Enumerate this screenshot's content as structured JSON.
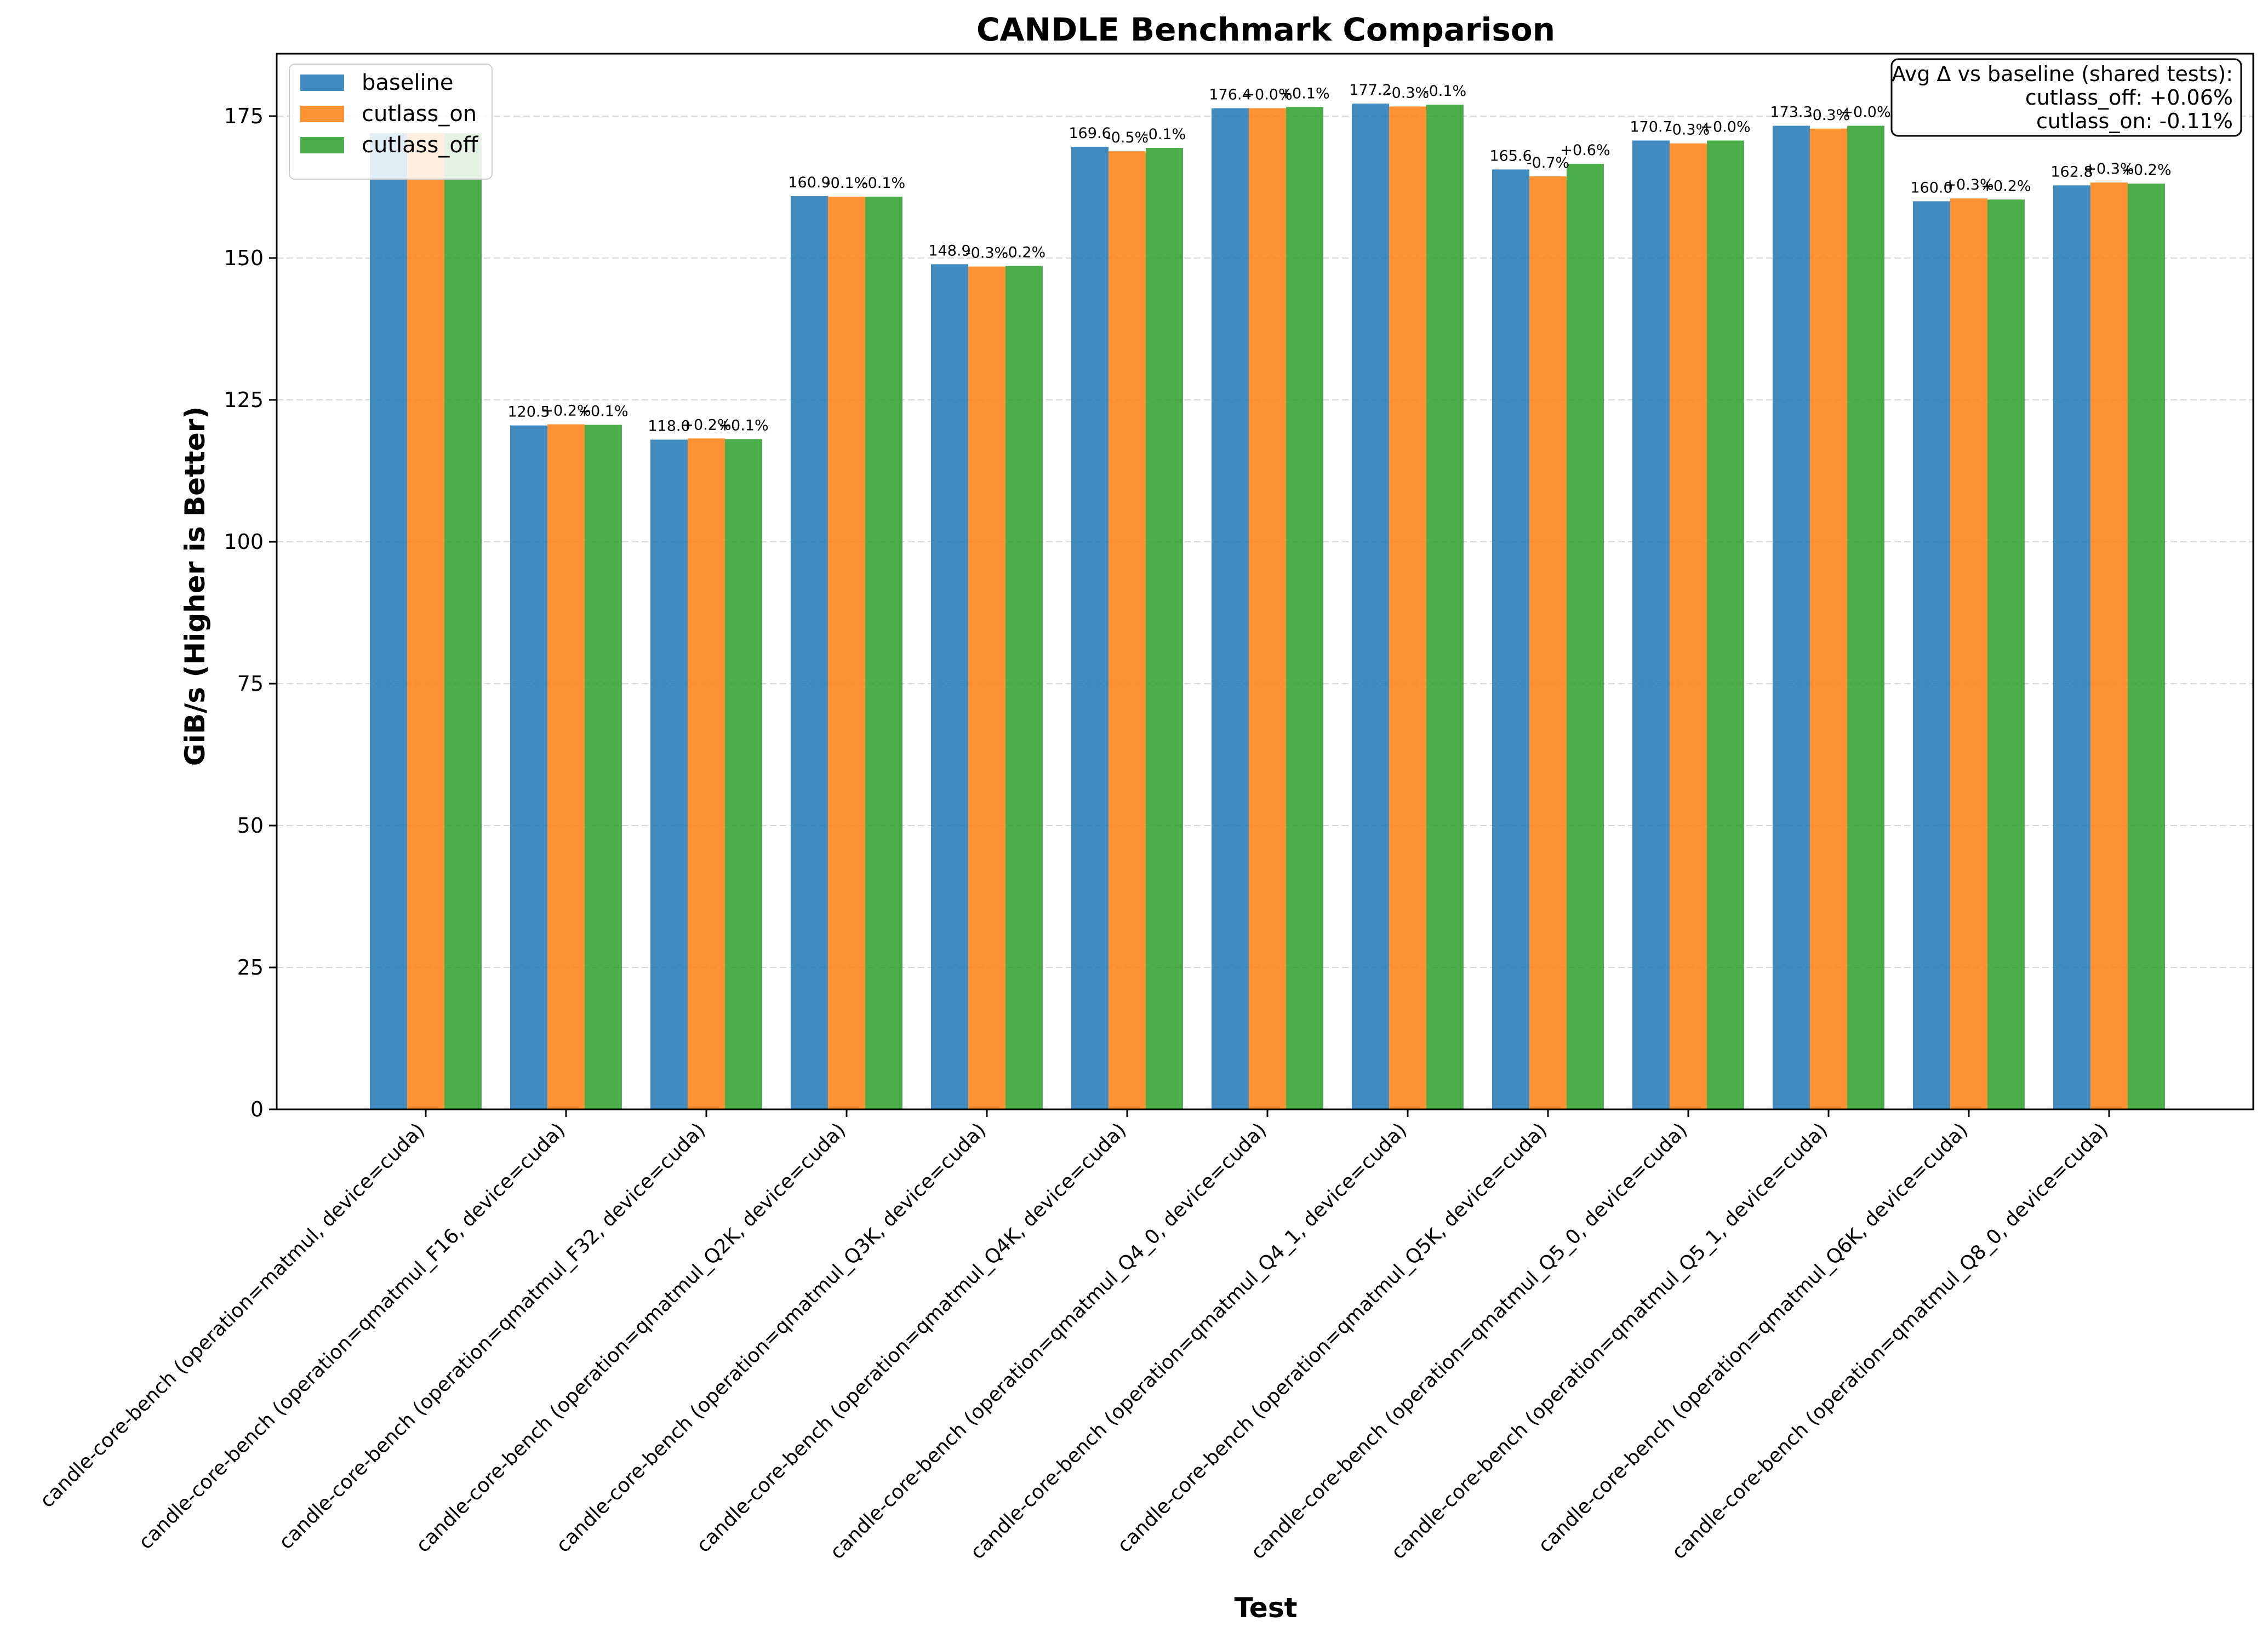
{
  "chart_data": {
    "type": "bar",
    "title": "CANDLE Benchmark Comparison",
    "xlabel": "Test",
    "ylabel": "GiB/s (Higher is Better)",
    "ylim": [
      0,
      186
    ],
    "yticks": [
      0,
      25,
      50,
      75,
      100,
      125,
      150,
      175
    ],
    "grid": "y-dashed",
    "legend_position": "top-left",
    "categories": [
      "candle-core-bench (operation=matmul, device=cuda)",
      "candle-core-bench (operation=qmatmul_F16, device=cuda)",
      "candle-core-bench (operation=qmatmul_F32, device=cuda)",
      "candle-core-bench (operation=qmatmul_Q2K, device=cuda)",
      "candle-core-bench (operation=qmatmul_Q3K, device=cuda)",
      "candle-core-bench (operation=qmatmul_Q4K, device=cuda)",
      "candle-core-bench (operation=qmatmul_Q4_0, device=cuda)",
      "candle-core-bench (operation=qmatmul_Q4_1, device=cuda)",
      "candle-core-bench (operation=qmatmul_Q5K, device=cuda)",
      "candle-core-bench (operation=qmatmul_Q5_0, device=cuda)",
      "candle-core-bench (operation=qmatmul_Q5_1, device=cuda)",
      "candle-core-bench (operation=qmatmul_Q6K, device=cuda)",
      "candle-core-bench (operation=qmatmul_Q8_0, device=cuda)"
    ],
    "series": [
      {
        "name": "baseline",
        "color": "#1f77b4",
        "values": [
          172.0,
          120.5,
          118.0,
          160.9,
          148.9,
          169.6,
          176.4,
          177.2,
          165.6,
          170.7,
          173.3,
          160.0,
          162.8
        ],
        "labels": [
          "",
          "120.5",
          "118.0",
          "160.9",
          "148.9",
          "169.6",
          "176.4",
          "177.2",
          "165.6",
          "170.7",
          "173.3",
          "160.0",
          "162.8"
        ]
      },
      {
        "name": "cutlass_on",
        "color": "#ff7f0e",
        "values": [
          172.0,
          120.7,
          118.2,
          160.8,
          148.5,
          168.8,
          176.4,
          176.7,
          164.4,
          170.2,
          172.8,
          160.5,
          163.3
        ],
        "labels": [
          "",
          "+0.2%",
          "+0.2%",
          "-0.1%",
          "-0.3%",
          "-0.5%",
          "+0.0%",
          "-0.3%",
          "-0.7%",
          "-0.3%",
          "-0.3%",
          "+0.3%",
          "+0.3%"
        ]
      },
      {
        "name": "cutlass_off",
        "color": "#2ca02c",
        "values": [
          172.0,
          120.6,
          118.1,
          160.8,
          148.6,
          169.4,
          176.6,
          177.0,
          166.6,
          170.7,
          173.3,
          160.3,
          163.1
        ],
        "labels": [
          "",
          "+0.1%",
          "+0.1%",
          "-0.1%",
          "-0.2%",
          "-0.1%",
          "+0.1%",
          "-0.1%",
          "+0.6%",
          "+0.0%",
          "+0.0%",
          "+0.2%",
          "+0.2%"
        ]
      }
    ],
    "annotation": {
      "lines": [
        "Avg Δ vs baseline (shared tests):",
        "cutlass_off: +0.06%",
        "cutlass_on: -0.11%"
      ],
      "position": "top-right"
    }
  }
}
